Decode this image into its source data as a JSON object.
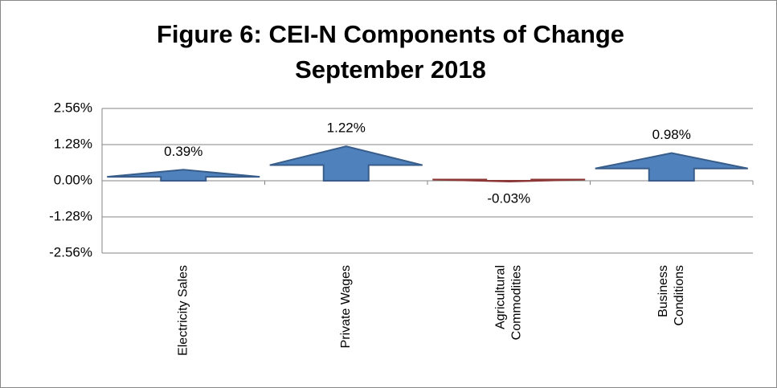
{
  "chart_data": {
    "type": "arrow",
    "title": "Figure 6: CEI-N Components of Change",
    "subtitle": "September 2018",
    "categories": [
      "Electricity Sales",
      "Private Wages",
      "Agricultural\nCommodities",
      "Business\nConditions"
    ],
    "values": [
      0.39,
      1.22,
      -0.03,
      0.98
    ],
    "value_labels": [
      "0.39%",
      "1.22%",
      "-0.03%",
      "0.98%"
    ],
    "colors": {
      "positive": "#4f81bd",
      "negative": "#c0504d"
    },
    "ylim": [
      -2.56,
      2.56
    ],
    "yticks": [
      {
        "value": -2.56,
        "label": "-2.56%"
      },
      {
        "value": -1.28,
        "label": "-1.28%"
      },
      {
        "value": 0,
        "label": "0.00%"
      },
      {
        "value": 1.28,
        "label": "1.28%"
      },
      {
        "value": 2.56,
        "label": "2.56%"
      }
    ],
    "grid": true
  }
}
